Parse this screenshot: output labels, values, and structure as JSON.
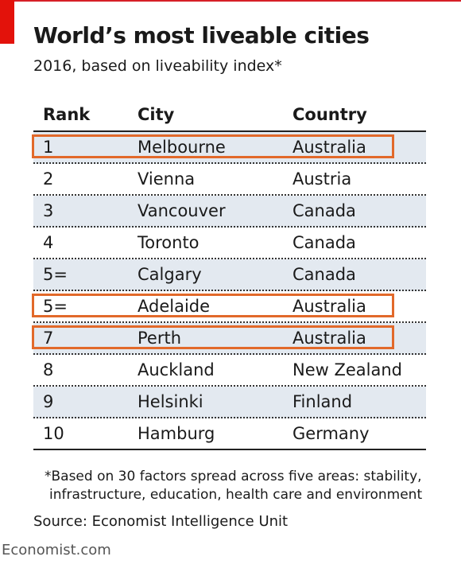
{
  "header": {
    "title": "World’s most liveable cities",
    "subtitle": "2016, based on liveability index*"
  },
  "colors": {
    "brand_red": "#e3120b",
    "row_shade": "#e3e9f0",
    "highlight_outline": "#e2692a"
  },
  "chart_data": {
    "type": "table",
    "columns": [
      "Rank",
      "City",
      "Country"
    ],
    "rows": [
      {
        "rank": "1",
        "city": "Melbourne",
        "country": "Australia",
        "highlighted": true
      },
      {
        "rank": "2",
        "city": "Vienna",
        "country": "Austria",
        "highlighted": false
      },
      {
        "rank": "3",
        "city": "Vancouver",
        "country": "Canada",
        "highlighted": false
      },
      {
        "rank": "4",
        "city": "Toronto",
        "country": "Canada",
        "highlighted": false
      },
      {
        "rank": "5=",
        "city": "Calgary",
        "country": "Canada",
        "highlighted": false
      },
      {
        "rank": "5=",
        "city": "Adelaide",
        "country": "Australia",
        "highlighted": true
      },
      {
        "rank": "7",
        "city": "Perth",
        "country": "Australia",
        "highlighted": true
      },
      {
        "rank": "8",
        "city": "Auckland",
        "country": "New Zealand",
        "highlighted": false
      },
      {
        "rank": "9",
        "city": "Helsinki",
        "country": "Finland",
        "highlighted": false
      },
      {
        "rank": "10",
        "city": "Hamburg",
        "country": "Germany",
        "highlighted": false
      }
    ]
  },
  "footer": {
    "note": "*Based on 30 factors spread across five areas: stability, infrastructure, education, health care and environment",
    "source": "Source: Economist Intelligence Unit",
    "brand": "Economist.com"
  }
}
